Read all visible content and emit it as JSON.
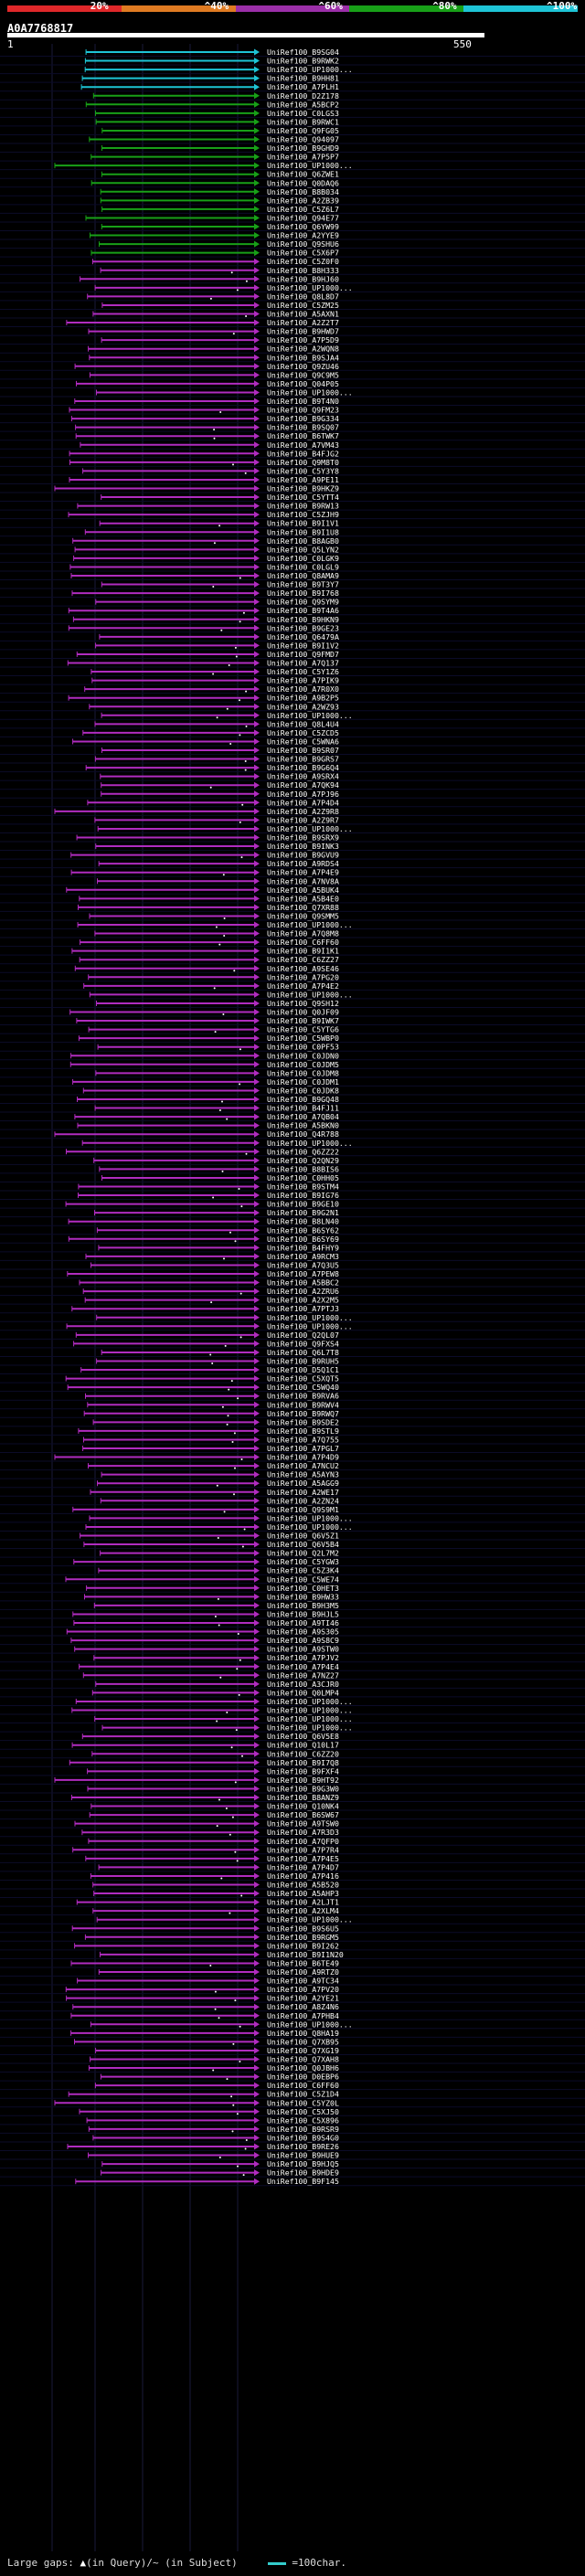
{
  "legend": [
    {
      "label": "20%",
      "color": "#e0282a"
    },
    {
      "label": "^40%",
      "color": "#e07b22"
    },
    {
      "label": "^60%",
      "color": "#9b2fa8"
    },
    {
      "label": "^80%",
      "color": "#18a018"
    },
    {
      "label": "^100%",
      "color": "#1ec4d6"
    }
  ],
  "query": {
    "id": "A0A7768817",
    "scale_start": "1",
    "scale_end": "550"
  },
  "hits": [
    "UniRef100_B9SG04",
    "UniRef100_B9RWK2",
    "UniRef100_UP1000...",
    "UniRef100_B9HH81",
    "UniRef100_A7PLH1",
    "UniRef100_D2Z178",
    "UniRef100_A5BCP2",
    "UniRef100_C0LGS3",
    "UniRef100_B9RWC1",
    "UniRef100_Q9FG05",
    "UniRef100_Q94097",
    "UniRef100_B9GHD9",
    "UniRef100_A7P5P7",
    "UniRef100_UP1000...",
    "UniRef100_Q6ZWE1",
    "UniRef100_Q0DAQ6",
    "UniRef100_B8B034",
    "UniRef100_A2ZB39",
    "UniRef100_C5Z6L7",
    "UniRef100_Q94E77",
    "UniRef100_Q6YW99",
    "UniRef100_A2YYE9",
    "UniRef100_Q9SHU6",
    "UniRef100_C5X6P7",
    "UniRef100_C5Z0F0",
    "UniRef100_B8H333",
    "UniRef100_B9HJ60",
    "UniRef100_UP1000...",
    "UniRef100_Q8L8D7",
    "UniRef100_C5ZM25",
    "UniRef100_A5AXN1",
    "UniRef100_A2Z2T7",
    "UniRef100_B9HWD7",
    "UniRef100_A7P5D9",
    "UniRef100_A2WQN8",
    "UniRef100_B9SJA4",
    "UniRef100_Q9ZU46",
    "UniRef100_Q9C9M5",
    "UniRef100_Q04P05",
    "UniRef100_UP1000...",
    "UniRef100_B9T4N0",
    "UniRef100_Q9FM23",
    "UniRef100_B9G334",
    "UniRef100_B9SQ07",
    "UniRef100_B6TWK7",
    "UniRef100_A7VM43",
    "UniRef100_B4FJG2",
    "UniRef100_Q9M8T0",
    "UniRef100_C5Y3Y8",
    "UniRef100_A9PE11",
    "UniRef100_B9HKZ9",
    "UniRef100_C5YTT4",
    "UniRef100_B9RW13",
    "UniRef100_C5ZJH9",
    "UniRef100_B9I1V1",
    "UniRef100_B9I1U8",
    "UniRef100_B8AGB0",
    "UniRef100_Q5LYN2",
    "UniRef100_C0LGK9",
    "UniRef100_C0LGL9",
    "UniRef100_Q8AMA9",
    "UniRef100_B9T3Y7",
    "UniRef100_B9I768",
    "UniRef100_Q9SYM9",
    "UniRef100_B9T4A6",
    "UniRef100_B9HKN9",
    "UniRef100_B9GE23",
    "UniRef100_Q6479A",
    "UniRef100_B9I1V2",
    "UniRef100_Q9FMD7",
    "UniRef100_A7Q137",
    "UniRef100_C5Y1Z6",
    "UniRef100_A7PIK9",
    "UniRef100_A7R0X0",
    "UniRef100_A9B2P5",
    "UniRef100_A2WZ93",
    "UniRef100_UP1000...",
    "UniRef100_Q8L4U4",
    "UniRef100_C5ZCD5",
    "UniRef100_C5WNA6",
    "UniRef100_B9SR07",
    "UniRef100_B9GRS7",
    "UniRef100_B9G6Q4",
    "UniRef100_A9SRX4",
    "UniRef100_A7QK94",
    "UniRef100_A7PJ96",
    "UniRef100_A7P4D4",
    "UniRef100_A2Z9R8",
    "UniRef100_A2Z9R7",
    "UniRef100_UP1000...",
    "UniRef100_B9SRX9",
    "UniRef100_B9INK3",
    "UniRef100_B9GVU9",
    "UniRef100_A9RDS4",
    "UniRef100_A7P4E9",
    "UniRef100_A7NV8A",
    "UniRef100_A5BUK4",
    "UniRef100_A5B4E0",
    "UniRef100_Q7XR88",
    "UniRef100_Q9SMM5",
    "UniRef100_UP1000...",
    "UniRef100_A7Q8M8",
    "UniRef100_C6FF60",
    "UniRef100_B9I1K1",
    "UniRef100_C6ZZ27",
    "UniRef100_A9SE46",
    "UniRef100_A7PG20",
    "UniRef100_A7P4E2",
    "UniRef100_UP1000...",
    "UniRef100_Q9SH12",
    "UniRef100_Q0JF09",
    "UniRef100_B9IWK7",
    "UniRef100_C5YTG6",
    "UniRef100_C5WBP0",
    "UniRef100_C0PF53",
    "UniRef100_C0JDN0",
    "UniRef100_C0JDM5",
    "UniRef100_C0JDM8",
    "UniRef100_C0JDM1",
    "UniRef100_C0JDK8",
    "UniRef100_B9GQ48",
    "UniRef100_B4FJ11",
    "UniRef100_A7QB04",
    "UniRef100_A5BKN0",
    "UniRef100_Q4R788",
    "UniRef100_UP1000...",
    "UniRef100_Q6ZZ22",
    "UniRef100_Q2QN29",
    "UniRef100_B8BIS6",
    "UniRef100_C0HH05",
    "UniRef100_B9STM4",
    "UniRef100_B9IG76",
    "UniRef100_B9GE10",
    "UniRef100_B9G2N1",
    "UniRef100_B8LN40",
    "UniRef100_B6SY62",
    "UniRef100_B6SY69",
    "UniRef100_B4FHY9",
    "UniRef100_A9RCM3",
    "UniRef100_A7Q3U5",
    "UniRef100_A7PEW8",
    "UniRef100_A5BBC2",
    "UniRef100_A2ZRU6",
    "UniRef100_A2X2M5",
    "UniRef100_A7PTJ3",
    "UniRef100_UP1000...",
    "UniRef100_UP1000...",
    "UniRef100_Q2QL07",
    "UniRef100_Q9FXS4",
    "UniRef100_Q6L7T8",
    "UniRef100_B9RUH5",
    "UniRef100_D5Q1C1",
    "UniRef100_C5XQT5",
    "UniRef100_C5WQ40",
    "UniRef100_B9RVA6",
    "UniRef100_B9RWV4",
    "UniRef100_B9RWQ7",
    "UniRef100_B9SDE2",
    "UniRef100_B9STL9",
    "UniRef100_A7Q755",
    "UniRef100_A7PGL7",
    "UniRef100_A7P4D9",
    "UniRef100_A7NCU2",
    "UniRef100_A5AYN3",
    "UniRef100_A5AGG9",
    "UniRef100_A2WE17",
    "UniRef100_A2ZN24",
    "UniRef100_Q9S9M1",
    "UniRef100_UP1000...",
    "UniRef100_UP1000...",
    "UniRef100_Q6V5Z1",
    "UniRef100_Q6V5B4",
    "UniRef100_Q2L7M2",
    "UniRef100_C5YGW3",
    "UniRef100_C5Z3K4",
    "UniRef100_C5WE74",
    "UniRef100_C0HET3",
    "UniRef100_B9HW33",
    "UniRef100_B9H3M5",
    "UniRef100_B9HJL5",
    "UniRef100_A9TI46",
    "UniRef100_A9S305",
    "UniRef100_A9S8C9",
    "UniRef100_A9STW0",
    "UniRef100_A7PJV2",
    "UniRef100_A7P4E4",
    "UniRef100_A7NZ27",
    "UniRef100_A3CJR0",
    "UniRef100_Q0LMP4",
    "UniRef100_UP1000...",
    "UniRef100_UP1000...",
    "UniRef100_UP1000...",
    "UniRef100_UP1000...",
    "UniRef100_Q6V5E8",
    "UniRef100_Q10L17",
    "UniRef100_C6ZZ20",
    "UniRef100_B9I7Q8",
    "UniRef100_B9FXF4",
    "UniRef100_B9HT92",
    "UniRef100_B9G3W0",
    "UniRef100_B8ANZ9",
    "UniRef100_Q10NK4",
    "UniRef100_B6SW67",
    "UniRef100_A9TSW0",
    "UniRef100_A7R3D3",
    "UniRef100_A7QFP0",
    "UniRef100_A7P7R4",
    "UniRef100_A7P4E5",
    "UniRef100_A7P4D7",
    "UniRef100_A7P416",
    "UniRef100_A5B520",
    "UniRef100_A5AHP3",
    "UniRef100_A2LJT1",
    "UniRef100_A2XLM4",
    "UniRef100_UP1000...",
    "UniRef100_B9S6U5",
    "UniRef100_B9RGM5",
    "UniRef100_B9I262",
    "UniRef100_B9I1N20",
    "UniRef100_B6TE49",
    "UniRef100_A9RTZ0",
    "UniRef100_A9TC34",
    "UniRef100_A7PV20",
    "UniRef100_A2YE21",
    "UniRef100_A8Z4N6",
    "UniRef100_A7PHB4",
    "UniRef100_UP1000...",
    "UniRef100_Q8HA19",
    "UniRef100_Q7XB95",
    "UniRef100_Q7XG19",
    "UniRef100_Q7XAH8",
    "UniRef100_Q0JBH6",
    "UniRef100_D0EBP6",
    "UniRef100_C6FF60",
    "UniRef100_C5Z1D4",
    "UniRef100_C5YZ0L",
    "UniRef100_C5XJ50",
    "UniRef100_C5X896",
    "UniRef100_B9RSR9",
    "UniRef100_B9S4G0",
    "UniRef100_B9RE26",
    "UniRef100_B9HUE9",
    "UniRef100_B9HJQ5",
    "UniRef100_B9HDE9",
    "UniRef100_B9F145"
  ],
  "footer": {
    "text1": "Large gaps: ",
    "tick": "▲",
    "text2": "(in Query)/",
    "tick2": "~",
    "text3": " (in Subject)",
    "swatch_label": " =100char."
  }
}
